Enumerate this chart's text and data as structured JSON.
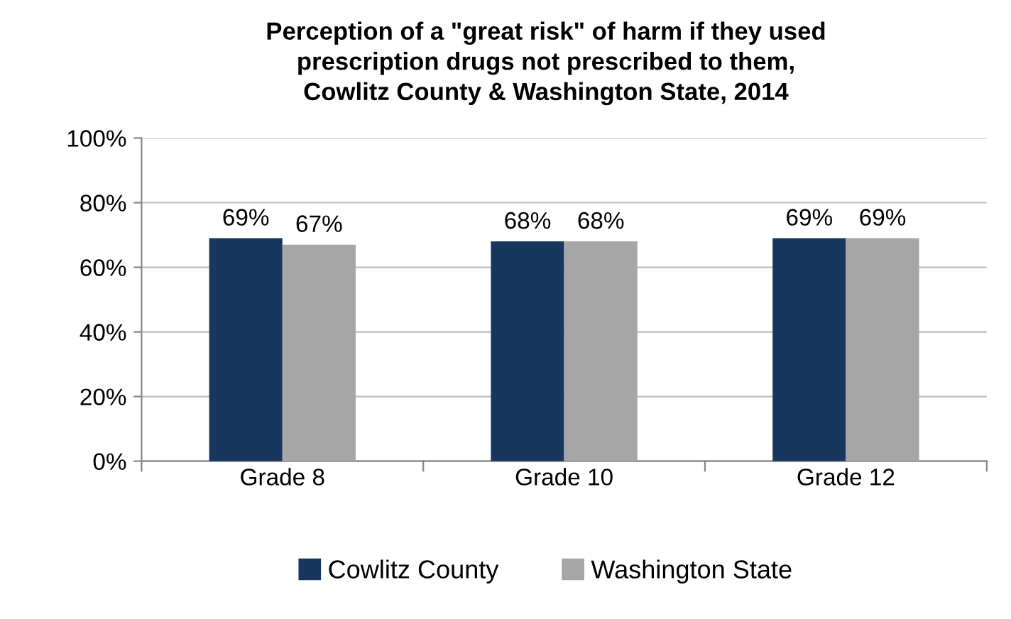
{
  "chart_data": {
    "type": "bar",
    "title": "Perception of a \"great risk\" of harm if they used\nprescription drugs not prescribed to them,\nCowlitz County & Washington State, 2014",
    "categories": [
      "Grade 8",
      "Grade 10",
      "Grade 12"
    ],
    "series": [
      {
        "name": "Cowlitz County",
        "color": "#17375e",
        "values": [
          69,
          68,
          69
        ],
        "value_labels": [
          "69%",
          "68%",
          "69%"
        ]
      },
      {
        "name": "Washington State",
        "color": "#a6a6a6",
        "values": [
          67,
          68,
          69
        ],
        "value_labels": [
          "67%",
          "68%",
          "69%"
        ]
      }
    ],
    "ylim": [
      0,
      100
    ],
    "yticks": [
      {
        "value": 0,
        "label": "0%"
      },
      {
        "value": 20,
        "label": "20%"
      },
      {
        "value": 40,
        "label": "40%"
      },
      {
        "value": 60,
        "label": "60%"
      },
      {
        "value": 80,
        "label": "80%"
      },
      {
        "value": 100,
        "label": "100%"
      }
    ],
    "grid": "y",
    "legend": "bottom"
  }
}
